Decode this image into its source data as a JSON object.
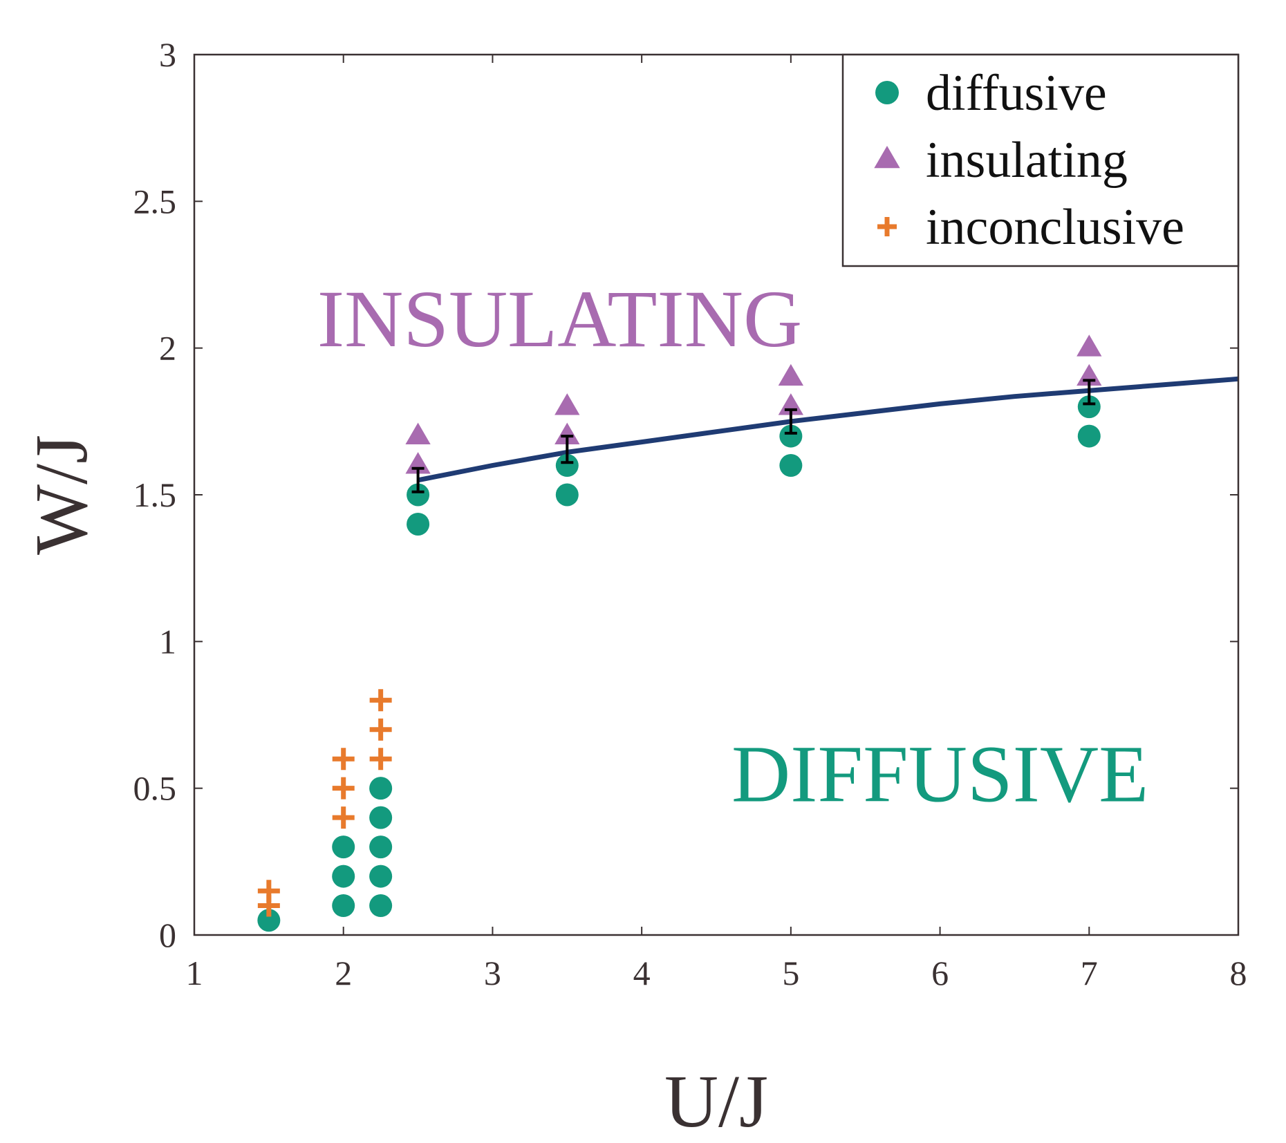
{
  "chart_data": {
    "type": "scatter",
    "xlabel": "U/J",
    "ylabel": "W/J",
    "xlim": [
      1,
      8
    ],
    "ylim": [
      0,
      3
    ],
    "xticks": [
      1,
      2,
      3,
      4,
      5,
      6,
      7,
      8
    ],
    "xtick_labels": [
      "1",
      "2",
      "3",
      "4",
      "5",
      "6",
      "7",
      "8"
    ],
    "yticks": [
      0,
      0.5,
      1,
      1.5,
      2,
      2.5,
      3
    ],
    "ytick_labels": [
      "0",
      "0.5",
      "1",
      "1.5",
      "2",
      "2.5",
      "3"
    ],
    "legend_position": "top-right",
    "series": [
      {
        "name": "diffusive",
        "marker": "circle",
        "color": "#139a7e",
        "points": [
          [
            1.5,
            0.05
          ],
          [
            2.0,
            0.1
          ],
          [
            2.0,
            0.2
          ],
          [
            2.0,
            0.3
          ],
          [
            2.25,
            0.1
          ],
          [
            2.25,
            0.2
          ],
          [
            2.25,
            0.3
          ],
          [
            2.25,
            0.4
          ],
          [
            2.25,
            0.5
          ],
          [
            2.5,
            1.4
          ],
          [
            2.5,
            1.5
          ],
          [
            3.5,
            1.5
          ],
          [
            3.5,
            1.6
          ],
          [
            5.0,
            1.6
          ],
          [
            5.0,
            1.7
          ],
          [
            7.0,
            1.7
          ],
          [
            7.0,
            1.8
          ]
        ]
      },
      {
        "name": "insulating",
        "marker": "triangle",
        "color": "#a86bb0",
        "points": [
          [
            2.5,
            1.6
          ],
          [
            2.5,
            1.7
          ],
          [
            3.5,
            1.7
          ],
          [
            3.5,
            1.8
          ],
          [
            5.0,
            1.8
          ],
          [
            5.0,
            1.9
          ],
          [
            7.0,
            1.9
          ],
          [
            7.0,
            2.0
          ]
        ]
      },
      {
        "name": "inconclusive",
        "marker": "plus",
        "color": "#e87a2c",
        "points": [
          [
            1.5,
            0.1
          ],
          [
            1.5,
            0.15
          ],
          [
            2.0,
            0.4
          ],
          [
            2.0,
            0.5
          ],
          [
            2.0,
            0.6
          ],
          [
            2.25,
            0.6
          ],
          [
            2.25,
            0.7
          ],
          [
            2.25,
            0.8
          ]
        ]
      }
    ],
    "boundary_curve": {
      "color": "#1f3b73",
      "x": [
        2.5,
        3.0,
        3.5,
        4.0,
        4.5,
        5.0,
        5.5,
        6.0,
        6.5,
        7.0,
        7.5,
        8.0
      ],
      "y": [
        1.55,
        1.6,
        1.645,
        1.68,
        1.715,
        1.75,
        1.78,
        1.81,
        1.835,
        1.855,
        1.875,
        1.895
      ]
    },
    "error_bars": [
      {
        "x": 2.5,
        "y": 1.55,
        "low": 1.51,
        "high": 1.59
      },
      {
        "x": 3.5,
        "y": 1.65,
        "low": 1.61,
        "high": 1.7
      },
      {
        "x": 5.0,
        "y": 1.75,
        "low": 1.71,
        "high": 1.79
      },
      {
        "x": 7.0,
        "y": 1.85,
        "low": 1.81,
        "high": 1.89
      }
    ],
    "annotations": [
      {
        "text": "INSULATING",
        "x": 3.45,
        "y": 2.1,
        "color": "#a86bb0"
      },
      {
        "text": "DIFFUSIVE",
        "x": 6.0,
        "y": 0.55,
        "color": "#139a7e"
      }
    ]
  }
}
